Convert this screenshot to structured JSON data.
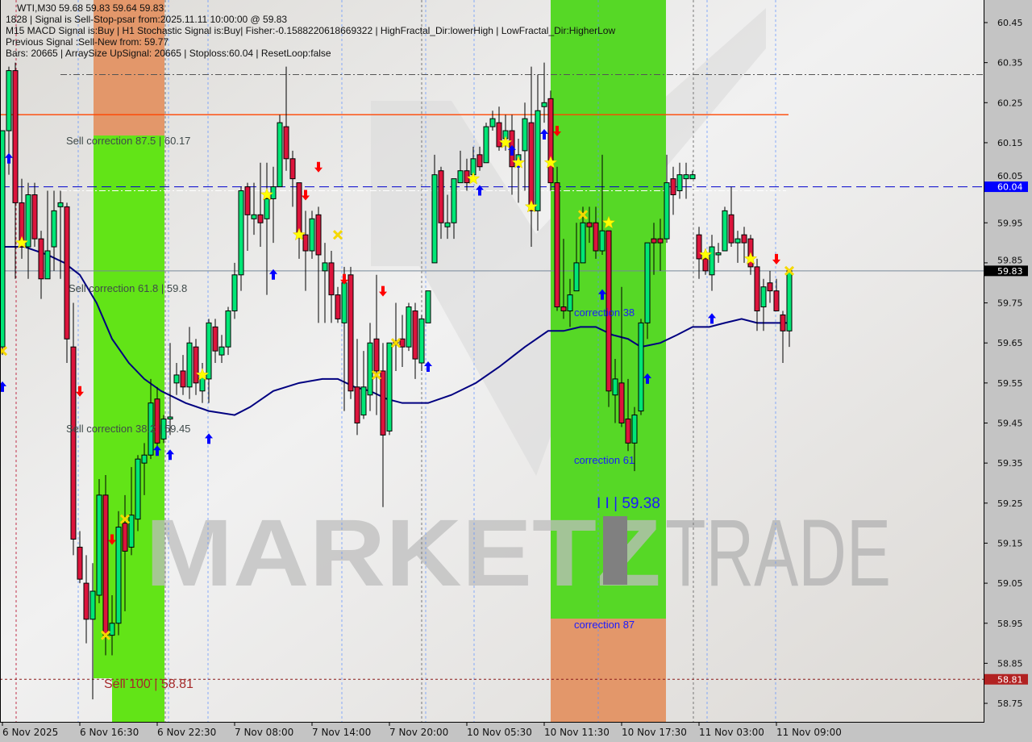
{
  "header": {
    "symbol_line": "WTI,M30  59.68 59.83 59.64 59.83",
    "signal_line": "1828 | Signal is Sell-Stop-psar from:2025.11.11 10:00:00 @ 59.83",
    "indicators_line": "M15 MACD Signal is:Buy | H1 Stochastic Signal is:Buy| Fisher:-0.1588220618669322 | HighFractal_Dir:lowerHigh | LowFractal_Dir:HigherLow",
    "previous_line": "Previous Signal :Sell-New from: 59.77",
    "bars_line": "Bars: 20665 | ArraySize UpSignal: 20665 | Stoploss:60.04 | ResetLoop:false"
  },
  "annotations": {
    "sell_875": "Sell correction 87.5 | 60.17",
    "sell_618": "Sell correction 61.8 | 59.8",
    "sell_382": "Sell correction 38.2 | 59.45",
    "sell_100": "Sell 100 | 58.81",
    "corr_38": "correction 38",
    "corr_61": "correction 61",
    "corr_87": "correction 87",
    "target": "I I | 59.38"
  },
  "watermark": {
    "word1": "MARKETZ",
    "word2": "TRADE"
  },
  "colors": {
    "bull": "#00e676",
    "bear": "#dc143c",
    "ma": "#000080",
    "zone_green": "#62e417",
    "zone_orange": "#e3976a",
    "stoploss_badge": "#0000ff",
    "price_badge": "#000000",
    "sell100_badge": "#b22222"
  },
  "chart_data": {
    "type": "candlestick",
    "symbol": "WTI",
    "timeframe": "M30",
    "ylim": [
      58.72,
      60.5
    ],
    "y_ticks": [
      "60.45",
      "60.35",
      "60.25",
      "60.15",
      "60.05",
      "59.95",
      "59.85",
      "59.75",
      "59.65",
      "59.55",
      "59.45",
      "59.35",
      "59.25",
      "59.15",
      "59.05",
      "58.95",
      "58.85",
      "58.75"
    ],
    "x_ticks": [
      {
        "i": 0,
        "label": "6 Nov 2025"
      },
      {
        "i": 12,
        "label": "6 Nov 16:30"
      },
      {
        "i": 24,
        "label": "6 Nov 22:30"
      },
      {
        "i": 36,
        "label": "7 Nov 08:00"
      },
      {
        "i": 48,
        "label": "7 Nov 14:00"
      },
      {
        "i": 60,
        "label": "7 Nov 20:00"
      },
      {
        "i": 72,
        "label": "10 Nov 05:30"
      },
      {
        "i": 84,
        "label": "10 Nov 11:30"
      },
      {
        "i": 96,
        "label": "10 Nov 17:30"
      },
      {
        "i": 108,
        "label": "11 Nov 03:00"
      },
      {
        "i": 120,
        "label": "11 Nov 09:00"
      }
    ],
    "ohlc": [
      [
        59.64,
        60.18,
        59.62,
        60.18
      ],
      [
        60.18,
        60.34,
        60.07,
        60.33
      ],
      [
        60.33,
        60.35,
        59.81,
        60.0
      ],
      [
        60.0,
        60.06,
        59.86,
        59.89
      ],
      [
        59.89,
        60.05,
        59.81,
        60.02
      ],
      [
        60.02,
        60.05,
        59.89,
        59.91
      ],
      [
        59.91,
        59.93,
        59.76,
        59.81
      ],
      [
        59.81,
        60.03,
        59.81,
        59.88
      ],
      [
        59.89,
        60.03,
        59.83,
        59.98
      ],
      [
        59.99,
        60.03,
        59.81,
        60.0
      ],
      [
        59.99,
        60.0,
        59.6,
        59.66
      ],
      [
        59.64,
        59.75,
        59.12,
        59.16
      ],
      [
        59.14,
        59.18,
        59.05,
        59.06
      ],
      [
        59.05,
        59.12,
        58.9,
        58.96
      ],
      [
        58.96,
        59.1,
        58.76,
        59.03
      ],
      [
        59.02,
        59.31,
        59.0,
        59.27
      ],
      [
        59.27,
        59.32,
        58.87,
        58.92
      ],
      [
        58.92,
        59.02,
        58.87,
        58.95
      ],
      [
        58.95,
        59.23,
        58.92,
        59.19
      ],
      [
        59.2,
        59.27,
        58.98,
        59.13
      ],
      [
        59.14,
        59.34,
        59.12,
        59.22
      ],
      [
        59.21,
        59.37,
        59.18,
        59.36
      ],
      [
        59.35,
        59.4,
        59.27,
        59.37
      ],
      [
        59.37,
        59.56,
        59.36,
        59.5
      ],
      [
        59.51,
        59.54,
        59.37,
        59.4
      ],
      [
        59.41,
        59.47,
        59.4,
        59.46
      ],
      [
        59.46,
        59.65,
        59.42,
        59.465
      ],
      [
        59.55,
        59.6,
        59.52,
        59.57
      ],
      [
        59.58,
        59.62,
        59.52,
        59.54
      ],
      [
        59.54,
        59.69,
        59.51,
        59.65
      ],
      [
        59.64,
        59.66,
        59.52,
        59.55
      ],
      [
        59.53,
        59.6,
        59.5,
        59.57
      ],
      [
        59.56,
        59.71,
        59.5,
        59.7
      ],
      [
        59.69,
        59.71,
        59.6,
        59.63
      ],
      [
        59.62,
        59.67,
        59.6,
        59.64
      ],
      [
        59.64,
        59.74,
        59.62,
        59.73
      ],
      [
        59.73,
        59.85,
        59.71,
        59.82
      ],
      [
        59.82,
        60.04,
        59.78,
        60.03
      ],
      [
        60.04,
        60.05,
        59.88,
        59.97
      ],
      [
        59.96,
        60.05,
        59.92,
        59.97
      ],
      [
        59.97,
        60.1,
        59.89,
        59.95
      ],
      [
        59.96,
        60.1,
        59.77,
        60.01
      ],
      [
        60.01,
        60.09,
        59.9,
        60.04
      ],
      [
        60.04,
        60.22,
        60.04,
        60.2
      ],
      [
        60.19,
        60.34,
        60.08,
        60.11
      ],
      [
        60.11,
        60.13,
        59.99,
        60.06
      ],
      [
        60.05,
        60.05,
        59.86,
        59.92
      ],
      [
        59.92,
        59.98,
        59.78,
        59.88
      ],
      [
        59.88,
        59.98,
        59.86,
        59.96
      ],
      [
        59.97,
        59.99,
        59.7,
        59.87
      ],
      [
        59.83,
        59.9,
        59.7,
        59.85
      ],
      [
        59.85,
        59.88,
        59.7,
        59.77
      ],
      [
        59.77,
        59.79,
        59.7,
        59.71
      ],
      [
        59.7,
        59.84,
        59.48,
        59.8
      ],
      [
        59.82,
        59.84,
        59.51,
        59.53
      ],
      [
        59.54,
        59.66,
        59.42,
        59.45
      ],
      [
        59.47,
        59.63,
        59.46,
        59.54
      ],
      [
        59.52,
        59.7,
        59.48,
        59.65
      ],
      [
        59.66,
        59.82,
        59.47,
        59.58
      ],
      [
        59.58,
        59.65,
        59.24,
        59.42
      ],
      [
        59.43,
        59.65,
        59.42,
        59.65
      ],
      [
        59.65,
        59.75,
        59.58,
        59.655
      ],
      [
        59.66,
        59.72,
        59.59,
        59.64
      ],
      [
        59.64,
        59.75,
        59.63,
        59.74
      ],
      [
        59.73,
        59.75,
        59.56,
        59.61
      ],
      [
        59.6,
        59.72,
        59.58,
        59.71
      ],
      [
        59.7,
        59.78,
        59.7,
        59.78
      ],
      [
        59.85,
        60.12,
        59.85,
        60.07
      ],
      [
        60.08,
        60.09,
        59.91,
        59.95
      ],
      [
        59.94,
        60.02,
        59.91,
        59.95
      ],
      [
        59.95,
        60.06,
        59.91,
        60.06
      ],
      [
        60.05,
        60.13,
        60.05,
        60.08
      ],
      [
        60.08,
        60.11,
        60.03,
        60.05
      ],
      [
        60.07,
        60.14,
        60.07,
        60.11
      ],
      [
        60.12,
        60.14,
        60.08,
        60.09
      ],
      [
        60.1,
        60.2,
        60.1,
        60.19
      ],
      [
        60.19,
        60.23,
        60.18,
        60.21
      ],
      [
        60.2,
        60.24,
        60.13,
        60.14
      ],
      [
        60.16,
        60.22,
        60.13,
        60.18
      ],
      [
        60.18,
        60.22,
        60.02,
        60.09
      ],
      [
        60.1,
        60.16,
        60.0,
        60.12
      ],
      [
        60.13,
        60.25,
        60.03,
        60.21
      ],
      [
        60.2,
        60.34,
        59.89,
        59.98
      ],
      [
        59.98,
        60.32,
        59.93,
        60.23
      ],
      [
        60.24,
        60.35,
        60.2,
        60.25
      ],
      [
        60.26,
        60.28,
        60.03,
        60.05
      ],
      [
        60.05,
        60.09,
        59.73,
        59.74
      ],
      [
        59.74,
        59.91,
        59.71,
        59.73
      ],
      [
        59.73,
        59.81,
        59.69,
        59.77
      ],
      [
        59.78,
        59.95,
        59.78,
        59.85
      ],
      [
        59.85,
        59.99,
        59.85,
        59.95
      ],
      [
        59.95,
        59.99,
        59.9,
        59.94
      ],
      [
        59.95,
        59.99,
        59.86,
        59.88
      ],
      [
        59.88,
        60.12,
        59.87,
        59.93
      ],
      [
        59.93,
        59.93,
        59.49,
        59.53
      ],
      [
        59.52,
        59.61,
        59.45,
        59.56
      ],
      [
        59.55,
        59.79,
        59.44,
        59.45
      ],
      [
        59.46,
        59.56,
        59.38,
        59.4
      ],
      [
        59.4,
        59.49,
        59.33,
        59.47
      ],
      [
        59.48,
        59.71,
        59.47,
        59.7
      ],
      [
        59.7,
        59.9,
        59.66,
        59.9
      ],
      [
        59.91,
        59.95,
        59.82,
        59.9
      ],
      [
        59.91,
        59.96,
        59.83,
        59.9
      ],
      [
        59.91,
        60.12,
        59.9,
        60.05
      ],
      [
        60.06,
        60.09,
        59.97,
        60.02
      ],
      [
        60.03,
        60.1,
        60.01,
        60.07
      ],
      [
        60.06,
        60.1,
        60.01,
        60.07
      ],
      [
        60.06,
        60.08,
        60.06,
        60.07
      ],
      [
        59.92,
        59.94,
        59.81,
        59.86
      ],
      [
        59.86,
        59.88,
        59.82,
        59.83
      ],
      [
        59.82,
        59.92,
        59.78,
        59.89
      ],
      [
        59.87,
        59.9,
        59.85,
        59.875
      ],
      [
        59.88,
        59.99,
        59.88,
        59.98
      ],
      [
        59.97,
        60.04,
        59.89,
        59.9
      ],
      [
        59.9,
        59.93,
        59.85,
        59.91
      ],
      [
        59.92,
        59.94,
        59.85,
        59.9
      ],
      [
        59.91,
        59.92,
        59.82,
        59.84
      ],
      [
        59.84,
        59.86,
        59.68,
        59.73
      ],
      [
        59.74,
        59.81,
        59.68,
        59.79
      ],
      [
        59.8,
        59.83,
        59.75,
        59.78
      ],
      [
        59.78,
        59.81,
        59.73,
        59.73
      ],
      [
        59.72,
        59.73,
        59.6,
        59.68
      ],
      [
        59.68,
        59.83,
        59.64,
        59.83
      ]
    ],
    "moving_average": [
      [
        0,
        59.89
      ],
      [
        3.4,
        59.89
      ],
      [
        7,
        59.87
      ],
      [
        9.6,
        59.85
      ],
      [
        12,
        59.82
      ],
      [
        14.6,
        59.75
      ],
      [
        17,
        59.66
      ],
      [
        19.6,
        59.6
      ],
      [
        22,
        59.56
      ],
      [
        24.6,
        59.53
      ],
      [
        28.4,
        59.5
      ],
      [
        32,
        59.48
      ],
      [
        36,
        59.47
      ],
      [
        38.4,
        59.49
      ],
      [
        42,
        59.53
      ],
      [
        46,
        59.55
      ],
      [
        49.6,
        59.56
      ],
      [
        52,
        59.56
      ],
      [
        54.6,
        59.54
      ],
      [
        57,
        59.53
      ],
      [
        59.6,
        59.51
      ],
      [
        62,
        59.5
      ],
      [
        66,
        59.5
      ],
      [
        69.6,
        59.52
      ],
      [
        73.4,
        59.55
      ],
      [
        77,
        59.59
      ],
      [
        81,
        59.64
      ],
      [
        84.6,
        59.68
      ],
      [
        87,
        59.68
      ],
      [
        89.6,
        59.69
      ],
      [
        92,
        59.69
      ],
      [
        94.6,
        59.67
      ],
      [
        97,
        59.66
      ],
      [
        99,
        59.64
      ],
      [
        102,
        59.65
      ],
      [
        104.6,
        59.67
      ],
      [
        107,
        59.69
      ],
      [
        109.6,
        59.69
      ],
      [
        112,
        59.7
      ],
      [
        114.6,
        59.71
      ],
      [
        117,
        59.7
      ],
      [
        119.6,
        59.7
      ],
      [
        122,
        59.7
      ]
    ],
    "levels": {
      "stoploss": 60.04,
      "current_price": 59.83,
      "sell_100": 58.81,
      "upper_red_dashdot": 60.32,
      "orange_line": 60.22,
      "white_dashdot": 60.03
    },
    "signals": {
      "buy_arrows": [
        [
          1,
          60.11
        ],
        [
          0,
          59.54
        ],
        [
          24,
          59.38
        ],
        [
          26,
          59.37
        ],
        [
          32,
          59.41
        ],
        [
          42,
          59.82
        ],
        [
          66,
          59.59
        ],
        [
          74,
          60.03
        ],
        [
          79,
          60.13
        ],
        [
          80,
          60.1
        ],
        [
          84,
          60.17
        ],
        [
          93,
          59.77
        ],
        [
          100,
          59.56
        ],
        [
          110,
          59.71
        ]
      ],
      "sell_arrows": [
        [
          12,
          59.53
        ],
        [
          17,
          59.16
        ],
        [
          47,
          60.02
        ],
        [
          49,
          60.09
        ],
        [
          53,
          59.81
        ],
        [
          59,
          59.78
        ],
        [
          86,
          60.18
        ],
        [
          120,
          59.86
        ]
      ],
      "stars": [
        [
          3,
          59.9
        ],
        [
          41,
          60.02
        ],
        [
          46,
          59.92
        ],
        [
          31,
          59.57
        ],
        [
          73,
          60.06
        ],
        [
          78,
          60.15
        ],
        [
          80,
          60.1
        ],
        [
          82,
          59.99
        ],
        [
          85,
          60.1
        ],
        [
          94,
          59.95
        ],
        [
          109,
          59.87
        ],
        [
          116,
          59.86
        ]
      ],
      "crosses": [
        [
          52,
          59.92
        ],
        [
          58,
          59.57
        ],
        [
          61,
          59.65
        ],
        [
          16,
          58.92
        ],
        [
          19,
          59.21
        ],
        [
          90,
          59.97
        ],
        [
          122,
          59.83
        ],
        [
          0,
          59.63
        ]
      ]
    },
    "price_badges": [
      "60.04",
      "59.83",
      "58.81"
    ]
  }
}
